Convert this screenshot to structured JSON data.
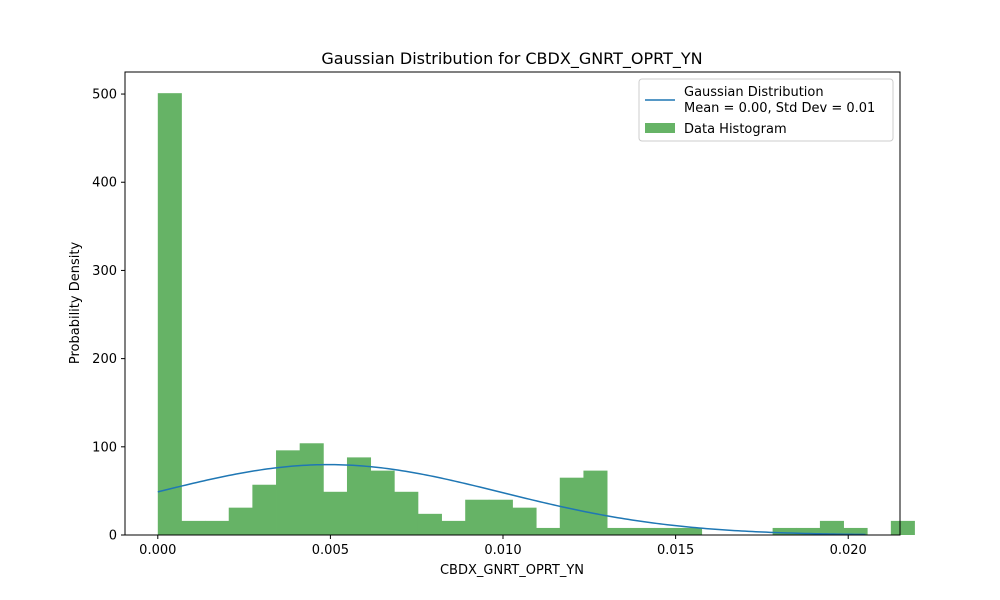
{
  "chart_data": {
    "type": "bar",
    "title": "Gaussian Distribution for CBDX_GNRT_OPRT_YN",
    "xlabel": "CBDX_GNRT_OPRT_YN",
    "ylabel": "Probability Density",
    "xlim": [
      -0.00095,
      0.0215
    ],
    "ylim": [
      0,
      525
    ],
    "x_ticks": [
      0.0,
      0.005,
      0.01,
      0.015,
      0.02
    ],
    "x_tick_labels": [
      "0.000",
      "0.005",
      "0.010",
      "0.015",
      "0.020"
    ],
    "y_ticks": [
      0,
      100,
      200,
      300,
      400,
      500
    ],
    "y_tick_labels": [
      "0",
      "100",
      "200",
      "300",
      "400",
      "500"
    ],
    "grid": false,
    "legend_position": "top-right",
    "histogram": {
      "name": "Data Histogram",
      "color": "#66b366",
      "bin_start": 0.0,
      "bin_width": 0.000685,
      "values": [
        501,
        16,
        16,
        31,
        57,
        96,
        104,
        49,
        88,
        73,
        49,
        24,
        16,
        40,
        40,
        31,
        8,
        65,
        73,
        8,
        8,
        8,
        8,
        0,
        0,
        0,
        8,
        8,
        16,
        8,
        0,
        16
      ]
    },
    "gaussian": {
      "name_line1": "Gaussian Distribution",
      "name_line2": "Mean = 0.00, Std Dev = 0.01",
      "color": "#1f77b4",
      "mean": 0.00495,
      "std": 0.005,
      "x_range": [
        0.0,
        0.0205
      ]
    }
  }
}
